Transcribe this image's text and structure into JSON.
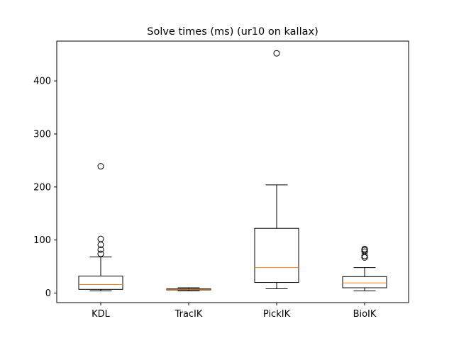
{
  "chart_data": {
    "type": "box",
    "title": "Solve times (ms) (ur10 on kallax)",
    "xlabel": "",
    "ylabel": "",
    "ylim": [
      -18,
      475
    ],
    "yticks": [
      0,
      100,
      200,
      300,
      400
    ],
    "grid": false,
    "legend": "none",
    "colors": {
      "box": "#000000",
      "median": "#ff7f0e",
      "background": "#ffffff"
    },
    "categories": [
      "KDL",
      "TracIK",
      "PickIK",
      "BioIK"
    ],
    "boxes": [
      {
        "label": "KDL",
        "whisker_low": 4,
        "q1": 7,
        "median": 16,
        "q3": 32,
        "whisker_high": 68,
        "outliers": [
          74,
          82,
          91,
          102,
          239
        ]
      },
      {
        "label": "TracIK",
        "whisker_low": 4,
        "q1": 6,
        "median": 7,
        "q3": 8,
        "whisker_high": 10,
        "outliers": []
      },
      {
        "label": "PickIK",
        "whisker_low": 8,
        "q1": 20,
        "median": 48,
        "q3": 122,
        "whisker_high": 204,
        "outliers": [
          452
        ]
      },
      {
        "label": "BioIK",
        "whisker_low": 4,
        "q1": 10,
        "median": 19,
        "q3": 31,
        "whisker_high": 48,
        "outliers": [
          67,
          70,
          78,
          81,
          83
        ]
      }
    ]
  }
}
